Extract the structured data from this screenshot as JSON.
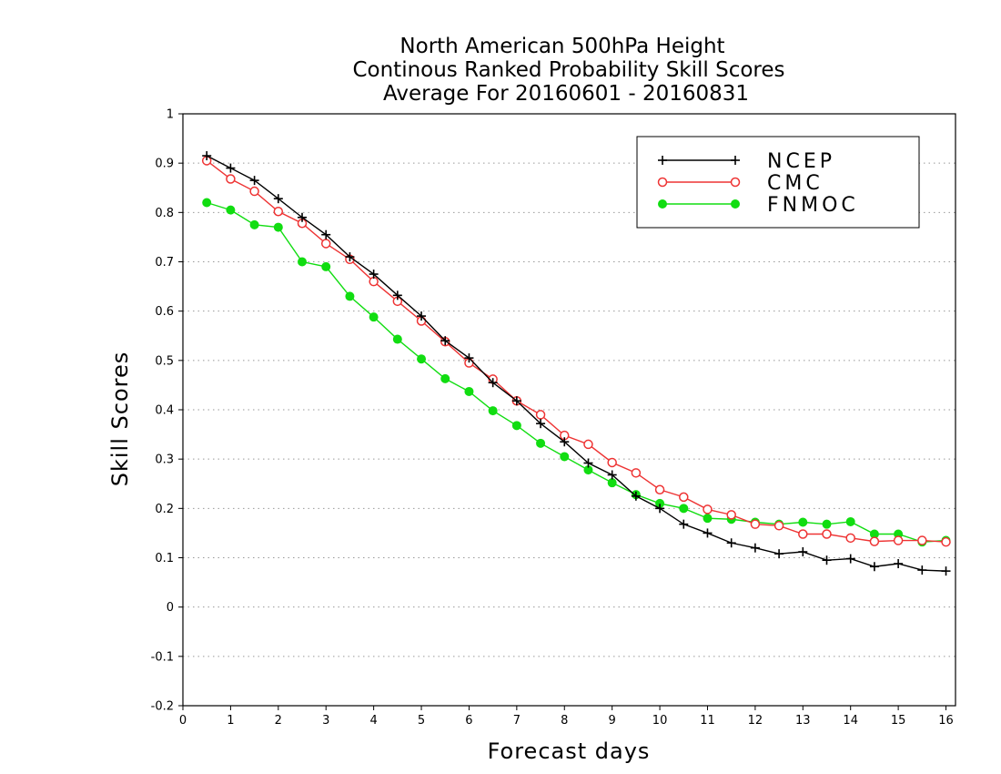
{
  "chart_data": {
    "type": "line",
    "title_lines": [
      "North American 500hPa Height",
      "Continous Ranked Probability Skill Scores",
      "Average For 20160601 - 20160831"
    ],
    "xlabel": "Forecast days",
    "ylabel": "Skill Scores",
    "xlim": [
      0,
      16.2
    ],
    "ylim": [
      -0.2,
      1
    ],
    "xticks": [
      0,
      1,
      2,
      3,
      4,
      5,
      6,
      7,
      8,
      9,
      10,
      11,
      12,
      13,
      14,
      15,
      16
    ],
    "xtick_labels": [
      "0",
      "1",
      "2",
      "3",
      "4",
      "5",
      "6",
      "7",
      "8",
      "9",
      "10",
      "11",
      "12",
      "13",
      "14",
      "15",
      "16"
    ],
    "yticks": [
      -0.2,
      -0.1,
      0,
      0.1,
      0.2,
      0.3,
      0.4,
      0.5,
      0.6,
      0.7,
      0.8,
      0.9,
      1
    ],
    "ytick_labels": [
      "-0.2",
      "-0.1",
      "0",
      "0.1",
      "0.2",
      "0.3",
      "0.4",
      "0.5",
      "0.6",
      "0.7",
      "0.8",
      "0.9",
      "1"
    ],
    "grid": "horizontal-dotted",
    "legend_position": "top-right",
    "x": [
      0.5,
      1,
      1.5,
      2,
      2.5,
      3,
      3.5,
      4,
      4.5,
      5,
      5.5,
      6,
      6.5,
      7,
      7.5,
      8,
      8.5,
      9,
      9.5,
      10,
      10.5,
      11,
      11.5,
      12,
      12.5,
      13,
      13.5,
      14,
      14.5,
      15,
      15.5,
      16
    ],
    "series": [
      {
        "name": "NCEP",
        "color": "#000000",
        "marker": "plus",
        "values": [
          0.915,
          0.89,
          0.865,
          0.828,
          0.79,
          0.755,
          0.71,
          0.675,
          0.632,
          0.59,
          0.54,
          0.505,
          0.455,
          0.418,
          0.372,
          0.335,
          0.292,
          0.268,
          0.225,
          0.2,
          0.168,
          0.15,
          0.13,
          0.12,
          0.108,
          0.112,
          0.095,
          0.098,
          0.082,
          0.088,
          0.075,
          0.073
        ]
      },
      {
        "name": "CMC",
        "color": "#ee3333",
        "marker": "open-circle",
        "values": [
          0.905,
          0.868,
          0.843,
          0.802,
          0.778,
          0.737,
          0.705,
          0.66,
          0.62,
          0.58,
          0.538,
          0.495,
          0.462,
          0.418,
          0.39,
          0.348,
          0.33,
          0.293,
          0.272,
          0.238,
          0.223,
          0.198,
          0.187,
          0.168,
          0.165,
          0.148,
          0.148,
          0.14,
          0.133,
          0.135,
          0.135,
          0.132
        ]
      },
      {
        "name": "FNMOC",
        "color": "#11dd11",
        "marker": "filled-circle",
        "values": [
          0.82,
          0.805,
          0.775,
          0.77,
          0.7,
          0.69,
          0.63,
          0.588,
          0.543,
          0.503,
          0.463,
          0.437,
          0.398,
          0.368,
          0.332,
          0.305,
          0.278,
          0.252,
          0.228,
          0.21,
          0.2,
          0.18,
          0.178,
          0.172,
          0.168,
          0.172,
          0.168,
          0.173,
          0.148,
          0.148,
          0.132,
          0.135
        ]
      }
    ]
  }
}
